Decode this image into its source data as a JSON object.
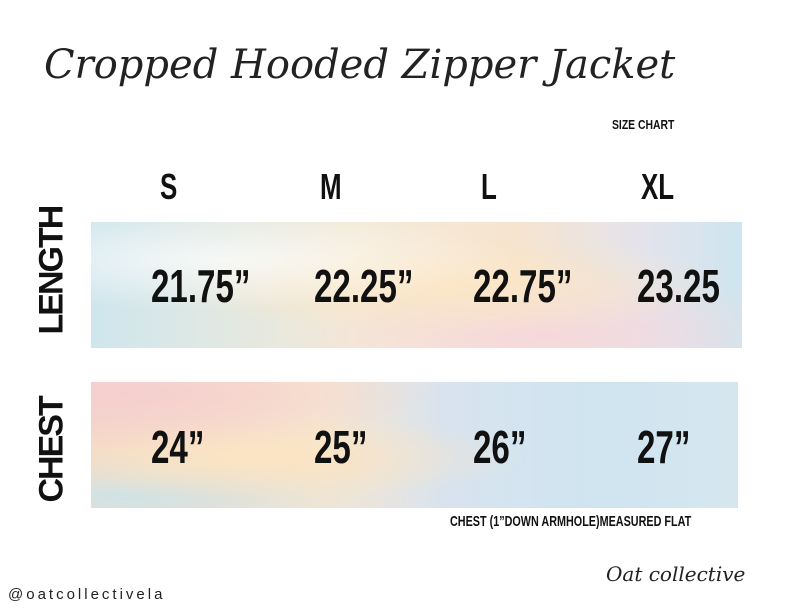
{
  "title": "Cropped Hooded Zipper Jacket",
  "subtitle": "SIZE CHART",
  "sizes": [
    "S",
    "M",
    "L",
    "XL"
  ],
  "rows": [
    {
      "label": "LENGTH",
      "values": [
        "21.75”",
        "22.25”",
        "22.75”",
        "23.25"
      ]
    },
    {
      "label": "CHEST",
      "values": [
        "24”",
        "25”",
        "26”",
        "27”"
      ]
    }
  ],
  "note": "CHEST (1”DOWN ARMHOLE)MEASURED FLAT",
  "handle": "@oatcollectivela",
  "logo": "Oat collective"
}
